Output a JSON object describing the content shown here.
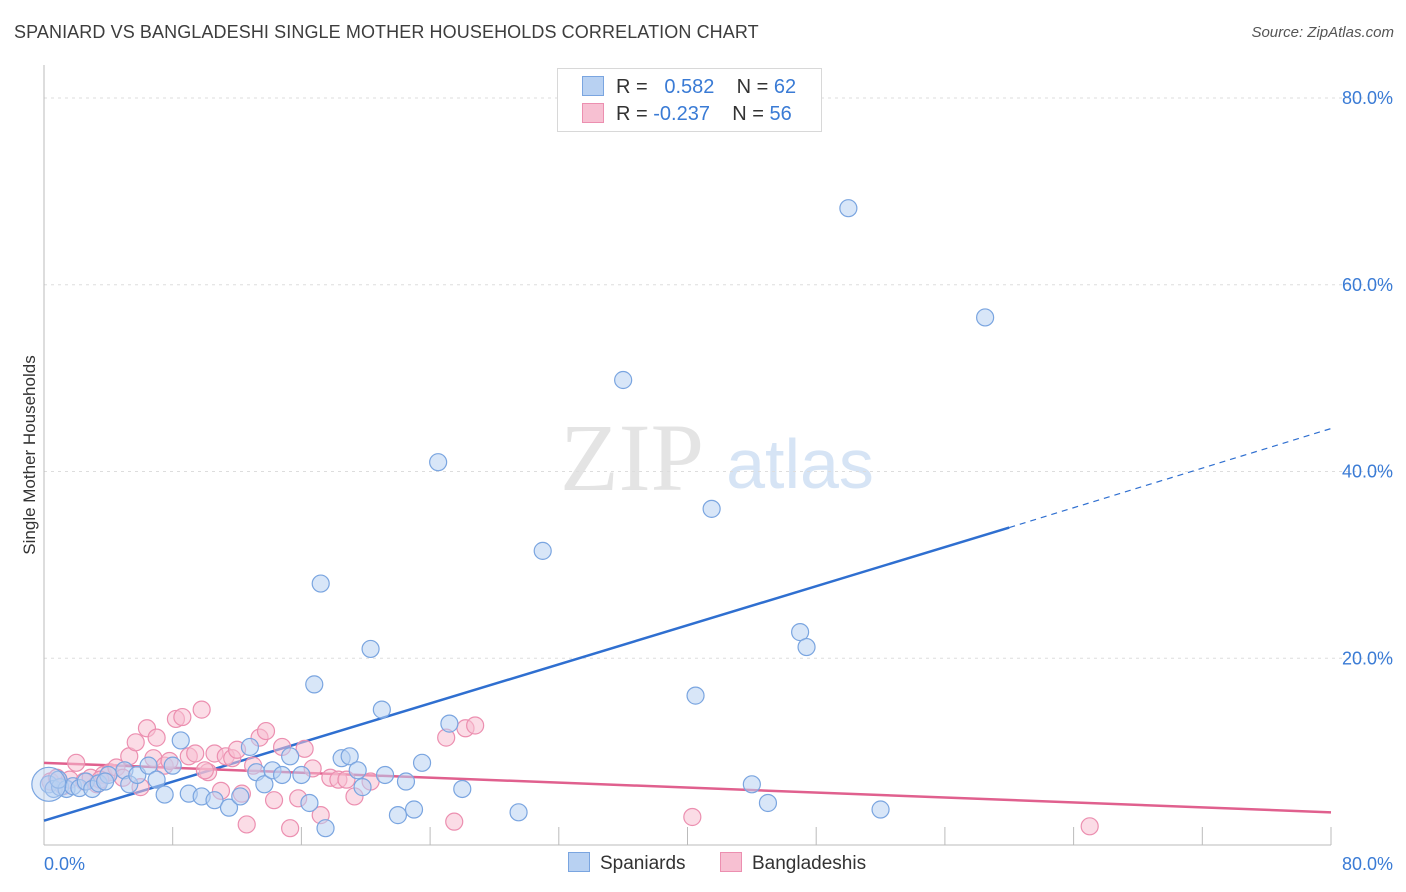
{
  "title": "SPANIARD VS BANGLADESHI SINGLE MOTHER HOUSEHOLDS CORRELATION CHART",
  "source": "Source: ZipAtlas.com",
  "watermark": {
    "zip": "ZIP",
    "atlas": "atlas"
  },
  "legend": {
    "rows": [
      {
        "r_label": "R =",
        "r_value": "0.582",
        "n_label": "N =",
        "n_value": "62"
      },
      {
        "r_label": "R =",
        "r_value": "-0.237",
        "n_label": "N =",
        "n_value": "56"
      }
    ]
  },
  "bottom_legend": {
    "spaniards": "Spaniards",
    "bangladeshis": "Bangladeshis"
  },
  "colors": {
    "spaniards_fill": "#b8d1f2",
    "spaniards_stroke": "#7aa5e0",
    "spaniards_line": "#2f6fd0",
    "bangladeshis_fill": "#f7c0d2",
    "bangladeshis_stroke": "#ec8fb0",
    "bangladeshis_line": "#e0608e",
    "tick_label": "#3a7bd5",
    "grid": "#dddddd"
  },
  "chart_data": {
    "type": "scatter",
    "title": "SPANIARD VS BANGLADESHI SINGLE MOTHER HOUSEHOLDS CORRELATION CHART",
    "xlabel": "",
    "ylabel": "Single Mother Households",
    "xlim": [
      0,
      80
    ],
    "ylim": [
      0,
      83
    ],
    "x_tick_labels": [
      "0.0%",
      "80.0%"
    ],
    "y_ticks": [
      20,
      40,
      60,
      80
    ],
    "y_tick_labels": [
      "20.0%",
      "40.0%",
      "60.0%",
      "80.0%"
    ],
    "grid": true,
    "legend_position": "top-center",
    "series": [
      {
        "name": "Spaniards",
        "r": 0.582,
        "n": 62,
        "trend": {
          "x0": 0,
          "y0": 2.6,
          "x1": 60,
          "y1": 34.0,
          "dashed_to_x": 80,
          "dashed_to_y": 44.6
        },
        "points": [
          [
            0.3,
            6.5
          ],
          [
            0.6,
            6.0
          ],
          [
            1.0,
            6.2
          ],
          [
            1.4,
            6.0
          ],
          [
            1.8,
            6.3
          ],
          [
            2.2,
            6.1
          ],
          [
            2.6,
            6.8
          ],
          [
            3.0,
            6.0
          ],
          [
            3.4,
            6.6
          ],
          [
            4.0,
            7.5
          ],
          [
            5.0,
            8.0
          ],
          [
            5.3,
            6.5
          ],
          [
            5.8,
            7.5
          ],
          [
            6.5,
            8.5
          ],
          [
            7.0,
            7.0
          ],
          [
            7.5,
            5.4
          ],
          [
            8.0,
            8.5
          ],
          [
            8.5,
            11.2
          ],
          [
            9.0,
            5.5
          ],
          [
            9.8,
            5.2
          ],
          [
            10.6,
            4.8
          ],
          [
            11.5,
            4.0
          ],
          [
            12.2,
            5.2
          ],
          [
            12.8,
            10.5
          ],
          [
            13.2,
            7.8
          ],
          [
            13.7,
            6.5
          ],
          [
            14.2,
            8.0
          ],
          [
            14.8,
            7.5
          ],
          [
            15.3,
            9.5
          ],
          [
            16.0,
            7.5
          ],
          [
            16.5,
            4.5
          ],
          [
            16.8,
            17.2
          ],
          [
            17.2,
            28.0
          ],
          [
            17.5,
            1.8
          ],
          [
            18.5,
            9.3
          ],
          [
            19.0,
            9.5
          ],
          [
            19.5,
            8.0
          ],
          [
            19.8,
            6.2
          ],
          [
            20.3,
            21.0
          ],
          [
            21.0,
            14.5
          ],
          [
            21.2,
            7.5
          ],
          [
            22.0,
            3.2
          ],
          [
            22.5,
            6.8
          ],
          [
            23.0,
            3.8
          ],
          [
            23.5,
            8.8
          ],
          [
            24.5,
            41.0
          ],
          [
            25.2,
            13.0
          ],
          [
            26.0,
            6.0
          ],
          [
            29.5,
            3.5
          ],
          [
            31.0,
            31.5
          ],
          [
            36.0,
            49.8
          ],
          [
            40.5,
            16.0
          ],
          [
            41.5,
            36.0
          ],
          [
            44.0,
            6.5
          ],
          [
            45.0,
            4.5
          ],
          [
            47.0,
            22.8
          ],
          [
            47.4,
            21.2
          ],
          [
            50.0,
            68.2
          ],
          [
            52.0,
            3.8
          ],
          [
            58.5,
            56.5
          ],
          [
            0.9,
            7.0
          ],
          [
            3.8,
            6.8
          ]
        ]
      },
      {
        "name": "Bangladeshis",
        "r": -0.237,
        "n": 56,
        "trend": {
          "x0": 0,
          "y0": 8.8,
          "x1": 80,
          "y1": 3.5
        },
        "points": [
          [
            0.4,
            6.8
          ],
          [
            0.8,
            7.2
          ],
          [
            1.2,
            6.3
          ],
          [
            1.6,
            7.0
          ],
          [
            2.0,
            8.8
          ],
          [
            2.5,
            6.8
          ],
          [
            2.9,
            7.2
          ],
          [
            3.3,
            6.5
          ],
          [
            3.7,
            7.5
          ],
          [
            4.1,
            7.8
          ],
          [
            4.5,
            8.3
          ],
          [
            4.9,
            7.2
          ],
          [
            5.3,
            9.5
          ],
          [
            5.7,
            11.0
          ],
          [
            6.0,
            6.2
          ],
          [
            6.4,
            12.5
          ],
          [
            6.8,
            9.3
          ],
          [
            7.0,
            11.5
          ],
          [
            7.5,
            8.5
          ],
          [
            7.8,
            9.0
          ],
          [
            8.2,
            13.5
          ],
          [
            8.6,
            13.7
          ],
          [
            9.0,
            9.5
          ],
          [
            9.4,
            9.8
          ],
          [
            9.8,
            14.5
          ],
          [
            10.2,
            7.8
          ],
          [
            10.6,
            9.8
          ],
          [
            11.0,
            5.8
          ],
          [
            11.3,
            9.5
          ],
          [
            11.7,
            9.3
          ],
          [
            12.0,
            10.2
          ],
          [
            12.3,
            5.5
          ],
          [
            12.6,
            2.2
          ],
          [
            13.0,
            8.5
          ],
          [
            13.4,
            11.5
          ],
          [
            13.8,
            12.2
          ],
          [
            14.3,
            4.8
          ],
          [
            14.8,
            10.5
          ],
          [
            15.3,
            1.8
          ],
          [
            15.8,
            5.0
          ],
          [
            16.2,
            10.3
          ],
          [
            16.7,
            8.2
          ],
          [
            17.2,
            3.2
          ],
          [
            17.8,
            7.2
          ],
          [
            18.3,
            7.0
          ],
          [
            18.8,
            7.0
          ],
          [
            19.3,
            5.2
          ],
          [
            20.3,
            6.8
          ],
          [
            25.0,
            11.5
          ],
          [
            25.5,
            2.5
          ],
          [
            26.2,
            12.5
          ],
          [
            26.8,
            12.8
          ],
          [
            40.3,
            3.0
          ],
          [
            65.0,
            2.0
          ],
          [
            3.5,
            7.0
          ],
          [
            10.0,
            8.0
          ]
        ]
      }
    ]
  }
}
